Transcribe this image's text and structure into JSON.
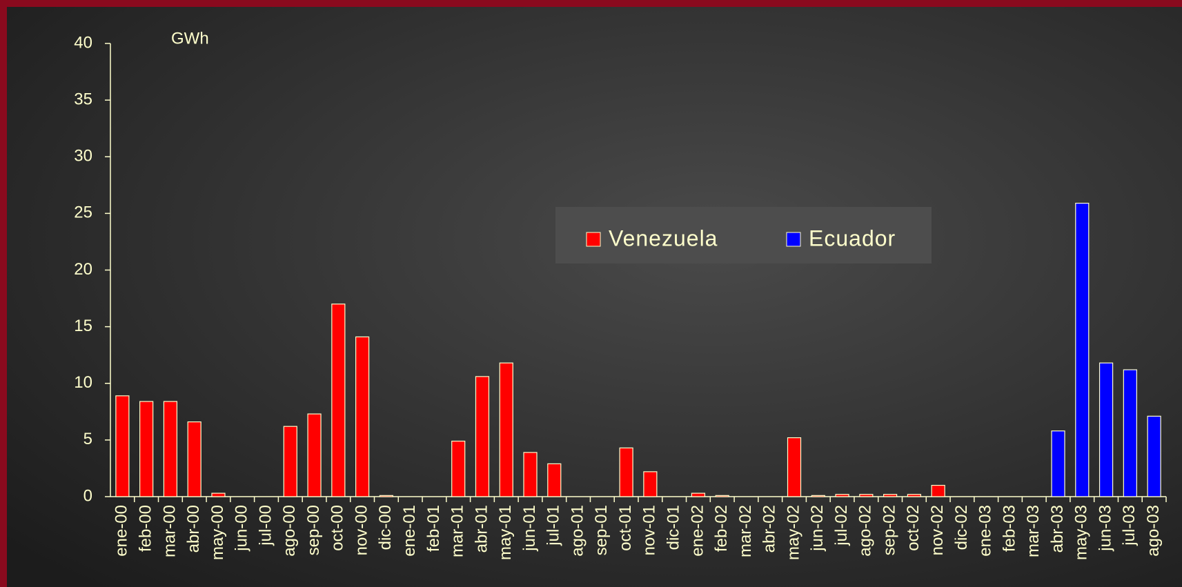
{
  "chart_data": {
    "type": "bar",
    "unit_label": "GWh",
    "categories": [
      "ene-00",
      "feb-00",
      "mar-00",
      "abr-00",
      "may-00",
      "jun-00",
      "jul-00",
      "ago-00",
      "sep-00",
      "oct-00",
      "nov-00",
      "dic-00",
      "ene-01",
      "feb-01",
      "mar-01",
      "abr-01",
      "may-01",
      "jun-01",
      "jul-01",
      "ago-01",
      "sep-01",
      "oct-01",
      "nov-01",
      "dic-01",
      "ene-02",
      "feb-02",
      "mar-02",
      "abr-02",
      "may-02",
      "jun-02",
      "jul-02",
      "ago-02",
      "sep-02",
      "oct-02",
      "nov-02",
      "dic-02",
      "ene-03",
      "feb-03",
      "mar-03",
      "abr-03",
      "may-03",
      "jun-03",
      "jul-03",
      "ago-03"
    ],
    "series": [
      {
        "name": "Venezuela",
        "color": "#ff0000",
        "values": [
          8.9,
          8.4,
          8.4,
          6.6,
          0.3,
          0,
          0,
          6.2,
          7.3,
          17.0,
          14.1,
          0.1,
          0,
          0,
          4.9,
          10.6,
          11.8,
          3.9,
          2.9,
          0,
          0,
          4.3,
          2.2,
          0,
          0.3,
          0.1,
          0,
          0,
          5.2,
          0.1,
          0.2,
          0.2,
          0.2,
          0.2,
          1.0,
          0,
          0,
          0,
          0,
          null,
          null,
          null,
          null,
          null
        ]
      },
      {
        "name": "Ecuador",
        "color": "#0000ff",
        "values": [
          null,
          null,
          null,
          null,
          null,
          null,
          null,
          null,
          null,
          null,
          null,
          null,
          null,
          null,
          null,
          null,
          null,
          null,
          null,
          null,
          null,
          null,
          null,
          null,
          null,
          null,
          null,
          null,
          null,
          null,
          null,
          null,
          null,
          null,
          null,
          null,
          null,
          null,
          null,
          5.8,
          25.9,
          11.8,
          11.2,
          7.1
        ]
      }
    ],
    "ylim": [
      0,
      40
    ],
    "yticks": [
      0,
      5,
      10,
      15,
      20,
      25,
      30,
      35,
      40
    ],
    "grid": false
  }
}
